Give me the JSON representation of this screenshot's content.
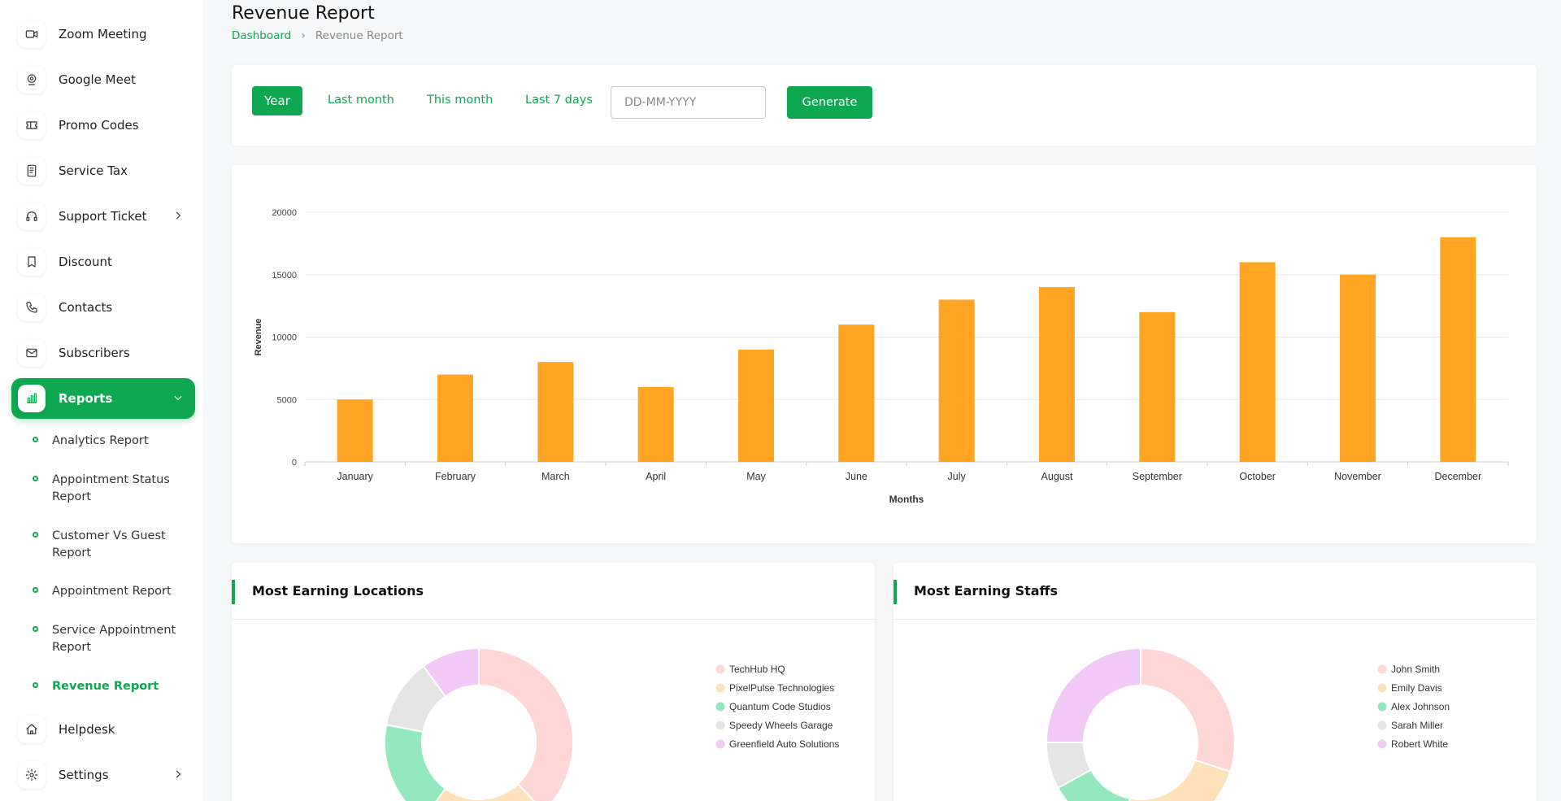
{
  "sidebar": {
    "items": [
      {
        "label": "Zoom Meeting",
        "icon": "video-icon"
      },
      {
        "label": "Google Meet",
        "icon": "map-pin-icon"
      },
      {
        "label": "Promo Codes",
        "icon": "ticket-icon"
      },
      {
        "label": "Service Tax",
        "icon": "receipt-icon"
      },
      {
        "label": "Support Ticket",
        "icon": "headphones-icon"
      },
      {
        "label": "Discount",
        "icon": "bookmark-icon"
      },
      {
        "label": "Contacts",
        "icon": "phone-icon"
      },
      {
        "label": "Subscribers",
        "icon": "mail-icon"
      },
      {
        "label": "Reports",
        "icon": "bar-chart-icon"
      }
    ],
    "report_items": [
      {
        "label": "Analytics Report"
      },
      {
        "label": "Appointment Status Report"
      },
      {
        "label": "Customer Vs Guest Report"
      },
      {
        "label": "Appointment Report"
      },
      {
        "label": "Service Appointment Report"
      },
      {
        "label": "Revenue Report"
      }
    ],
    "bottom_items": [
      {
        "label": "Helpdesk",
        "icon": "home-icon"
      },
      {
        "label": "Settings",
        "icon": "gear-icon"
      }
    ]
  },
  "header": {
    "title": "Revenue Report",
    "breadcrumb_home": "Dashboard",
    "breadcrumb_sep": "›",
    "breadcrumb_current": "Revenue Report"
  },
  "filters": {
    "year": "Year",
    "last_month": "Last month",
    "this_month": "This month",
    "last_7_days": "Last 7 days",
    "date_placeholder": "DD-MM-YYYY",
    "generate": "Generate"
  },
  "colors": {
    "accent": "#0da84f",
    "bar": "#ffa523"
  },
  "chart_data": [
    {
      "type": "bar",
      "categories": [
        "January",
        "February",
        "March",
        "April",
        "May",
        "June",
        "July",
        "August",
        "September",
        "October",
        "November",
        "December"
      ],
      "values": [
        5000,
        7000,
        8000,
        6000,
        9000,
        11000,
        13000,
        14000,
        12000,
        16000,
        15000,
        18000
      ],
      "xlabel": "Months",
      "ylabel": "Revenue",
      "ylim": [
        0,
        20000
      ],
      "yticks": [
        0,
        5000,
        10000,
        15000,
        20000
      ],
      "grid": true,
      "color": "#ffa523"
    },
    {
      "type": "pie",
      "title": "Most Earning Locations",
      "labels": [
        "TechHub HQ",
        "PixelPulse Technologies",
        "Quantum Code Studios",
        "Speedy Wheels Garage",
        "Greenfield Auto Solutions"
      ],
      "values": [
        38,
        22,
        18,
        12,
        10
      ],
      "colors": [
        "#ffd6d6",
        "#fde1b8",
        "#94e8bd",
        "#e4e4e4",
        "#f2c8f7"
      ],
      "legend": "right"
    },
    {
      "type": "pie",
      "title": "Most Earning Staffs",
      "labels": [
        "John Smith",
        "Emily Davis",
        "Alex Johnson",
        "Sarah Miller",
        "Robert White"
      ],
      "values": [
        30,
        23,
        14,
        8,
        25
      ],
      "colors": [
        "#ffd6d6",
        "#fde1b8",
        "#94e8bd",
        "#e4e4e4",
        "#f2c8f7"
      ],
      "legend": "right"
    }
  ]
}
